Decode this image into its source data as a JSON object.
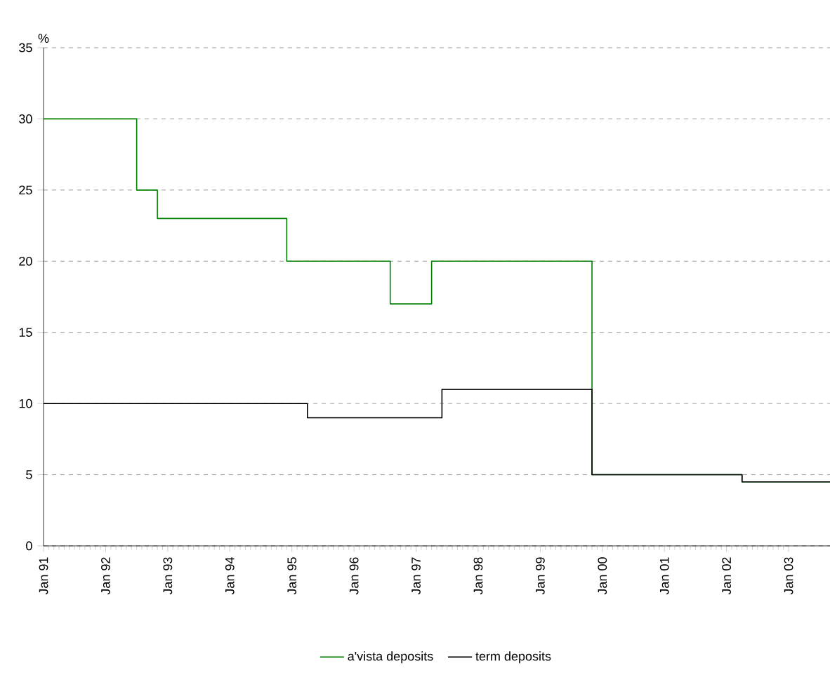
{
  "chart_data": {
    "type": "step",
    "ylabel": "%",
    "xlim": [
      "1991-01",
      "2003-09"
    ],
    "ylim": [
      0,
      35
    ],
    "xticks": [
      {
        "value": "1991-01",
        "label": "Jan 91"
      },
      {
        "value": "1992-01",
        "label": "Jan 92"
      },
      {
        "value": "1993-01",
        "label": "Jan 93"
      },
      {
        "value": "1994-01",
        "label": "Jan 94"
      },
      {
        "value": "1995-01",
        "label": "Jan 95"
      },
      {
        "value": "1996-01",
        "label": "Jan 96"
      },
      {
        "value": "1997-01",
        "label": "Jan 97"
      },
      {
        "value": "1998-01",
        "label": "Jan 98"
      },
      {
        "value": "1999-01",
        "label": "Jan 99"
      },
      {
        "value": "2000-01",
        "label": "Jan 00"
      },
      {
        "value": "2001-01",
        "label": "Jan 01"
      },
      {
        "value": "2002-01",
        "label": "Jan 02"
      },
      {
        "value": "2003-01",
        "label": "Jan 03"
      }
    ],
    "yticks": [
      0,
      5,
      10,
      15,
      20,
      25,
      30,
      35
    ],
    "grid": "y",
    "legend": "bottom",
    "series": [
      {
        "name": "a'vista deposits",
        "color": "#008000",
        "x": [
          "1991-01",
          "1992-07",
          "1992-11",
          "1994-12",
          "1996-08",
          "1997-04",
          "1999-11",
          "2002-04",
          "2003-09"
        ],
        "values": [
          30,
          25,
          23,
          20,
          17,
          20,
          5,
          4.5,
          4.5
        ]
      },
      {
        "name": "term deposits",
        "color": "#000000",
        "x": [
          "1991-01",
          "1995-04",
          "1997-06",
          "1999-11",
          "2002-04",
          "2003-09"
        ],
        "values": [
          10,
          9,
          11,
          5,
          4.5,
          4.5
        ]
      }
    ]
  }
}
